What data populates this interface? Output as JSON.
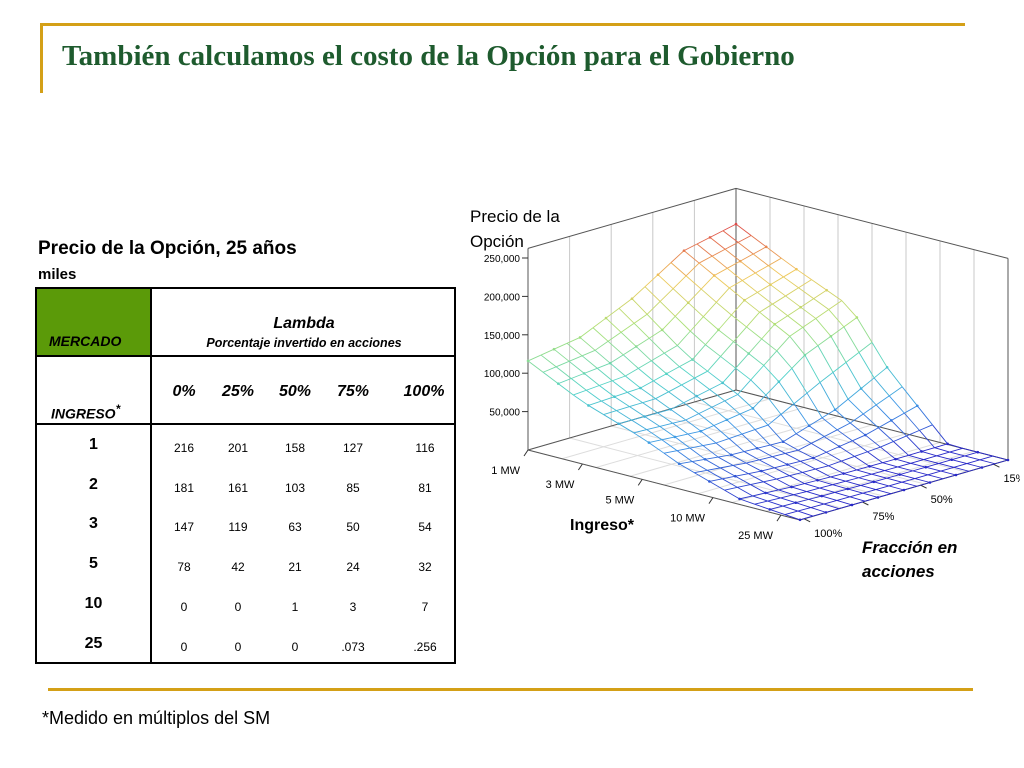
{
  "slide": {
    "title": "También calculamos el costo de la Opción para el Gobierno",
    "footnote": "*Medido en múltiplos del SM"
  },
  "table": {
    "title": "Precio de la Opción, 25 años",
    "subtitle": "miles",
    "mercado_label": "MERCADO",
    "lambda_label": "Lambda",
    "lambda_sub": "Porcentaje invertido en acciones",
    "ingreso_label": "INGRESO",
    "ingreso_mark": "*",
    "columns": [
      "0%",
      "25%",
      "50%",
      "75%",
      "100%"
    ],
    "rows": [
      {
        "label": "1",
        "values": [
          "216",
          "201",
          "158",
          "127",
          "116"
        ]
      },
      {
        "label": "2",
        "values": [
          "181",
          "161",
          "103",
          "85",
          "81"
        ]
      },
      {
        "label": "3",
        "values": [
          "147",
          "119",
          "63",
          "50",
          "54"
        ]
      },
      {
        "label": "5",
        "values": [
          "78",
          "42",
          "21",
          "24",
          "32"
        ]
      },
      {
        "label": "10",
        "values": [
          "0",
          "0",
          "1",
          "3",
          "7"
        ]
      },
      {
        "label": "25",
        "values": [
          "0",
          "0",
          "0",
          ".073",
          ".256"
        ]
      }
    ]
  },
  "chart_data": {
    "type": "surface3d",
    "zlabel": "Precio de la Opción",
    "xlabel": "Ingreso*",
    "ylabel": "Fracción en acciones",
    "z_ticks": [
      "250,000",
      "200,000",
      "150,000",
      "100,000",
      "50,000"
    ],
    "z_tick_values": [
      250000,
      200000,
      150000,
      100000,
      50000
    ],
    "x_ticks": [
      "1 MW",
      "3 MW",
      "5 MW",
      "10 MW",
      "25 MW"
    ],
    "y_ticks": [
      "15%",
      "50%",
      "75%",
      "100%"
    ],
    "surface_x_labels": [
      "1",
      "2",
      "3",
      "5",
      "10",
      "25"
    ],
    "surface_y_labels": [
      "0%",
      "25%",
      "50%",
      "75%",
      "100%"
    ],
    "z_values_thousands": [
      [
        216,
        201,
        158,
        127,
        116
      ],
      [
        181,
        161,
        103,
        85,
        81
      ],
      [
        147,
        119,
        63,
        50,
        54
      ],
      [
        78,
        42,
        21,
        24,
        32
      ],
      [
        0,
        0,
        1,
        3,
        7
      ],
      [
        0,
        0,
        0,
        0.073,
        0.256
      ]
    ],
    "zlim": [
      0,
      250000
    ]
  }
}
